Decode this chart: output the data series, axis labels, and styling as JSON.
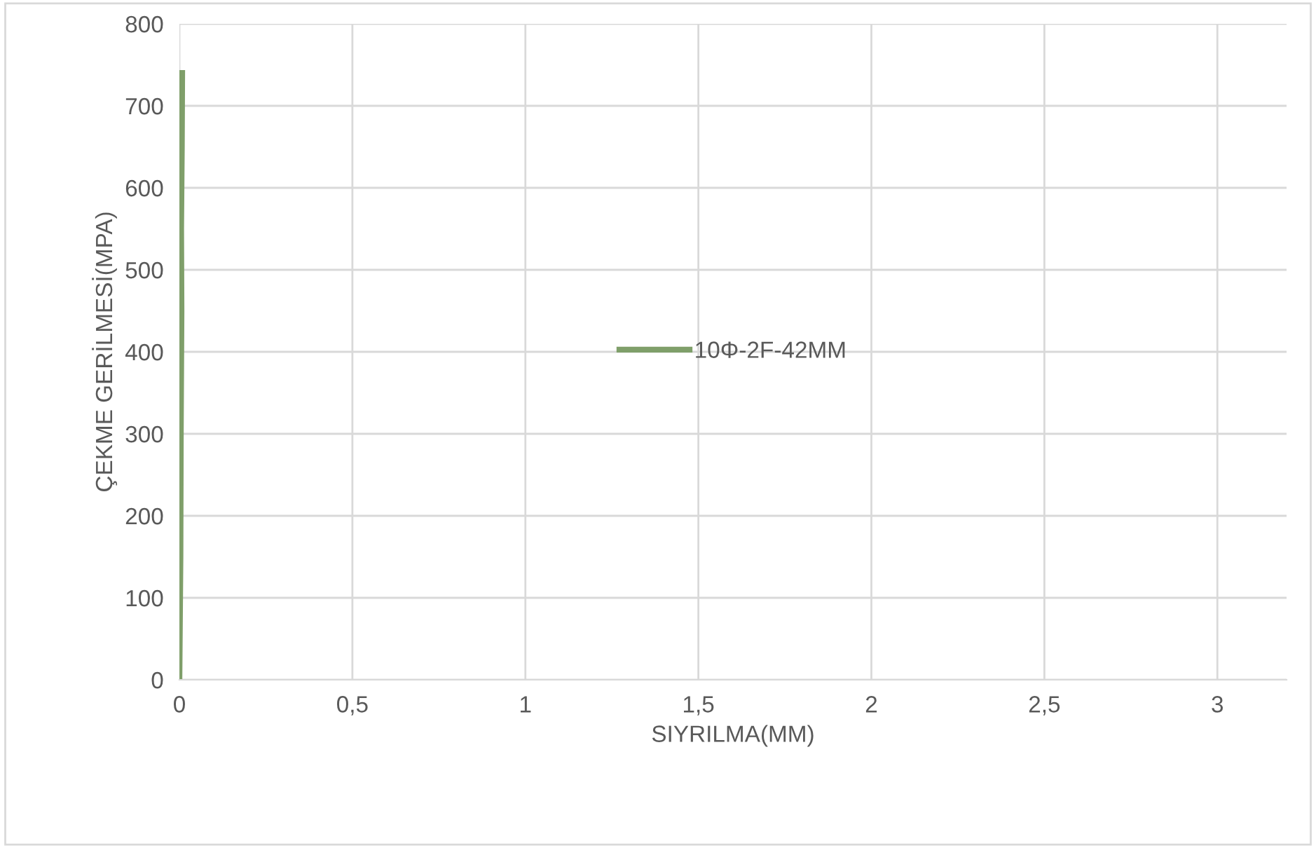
{
  "chart_data": {
    "type": "line",
    "xlabel": "SIYRILMA(MM)",
    "ylabel": "ÇEKME GERİLMESİ(MPA)",
    "series": [
      {
        "name": "10Φ-2F-42MM",
        "color": "#7f9f6a",
        "x": [
          0,
          0.003,
          0.004,
          0.006,
          0.005,
          0.007,
          0.008
        ],
        "values": [
          0,
          150,
          300,
          450,
          550,
          650,
          740
        ]
      }
    ],
    "xlim": [
      0,
      3.2
    ],
    "xticks": [
      0,
      {
        "value": 0.5,
        "label": "0,5"
      },
      1,
      {
        "value": 1.5,
        "label": "1,5"
      },
      2,
      {
        "value": 2.5,
        "label": "2,5"
      },
      3
    ],
    "ylim": [
      0,
      800
    ],
    "yticks": [
      0,
      100,
      200,
      300,
      400,
      500,
      600,
      700,
      800
    ],
    "grid": true,
    "legend": "center"
  }
}
